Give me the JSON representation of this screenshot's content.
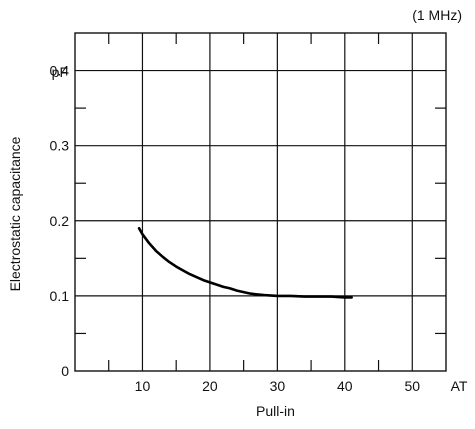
{
  "chart_data": {
    "type": "line",
    "title": "",
    "annotation": "(1 MHz)",
    "xlabel": "Pull-in",
    "x_unit": "AT",
    "ylabel": "Electrostatic capacitance",
    "y_unit": "pF",
    "xlim": [
      0,
      55
    ],
    "ylim": [
      0,
      0.45
    ],
    "x_ticks": [
      10,
      20,
      30,
      40,
      50
    ],
    "x_tick_labels": [
      "10",
      "20",
      "30",
      "40",
      "50"
    ],
    "y_ticks": [
      0,
      0.1,
      0.2,
      0.3,
      0.4
    ],
    "y_tick_labels": [
      "0",
      "0.1",
      "0.2",
      "0.3",
      "0.4"
    ],
    "x_minor_ticks": [
      5,
      15,
      25,
      35,
      45
    ],
    "y_minor_ticks": [
      0.05,
      0.15,
      0.25,
      0.35
    ],
    "grid": true,
    "series": [
      {
        "x": [
          9.5,
          10,
          11,
          12,
          13,
          14,
          15,
          16,
          17,
          18,
          19,
          20,
          21,
          22,
          23,
          24,
          25,
          26,
          27,
          28,
          30,
          32,
          34,
          36,
          38,
          40,
          41
        ],
        "y": [
          0.19,
          0.182,
          0.17,
          0.16,
          0.152,
          0.145,
          0.139,
          0.134,
          0.129,
          0.125,
          0.121,
          0.118,
          0.115,
          0.112,
          0.11,
          0.107,
          0.105,
          0.103,
          0.102,
          0.101,
          0.1,
          0.1,
          0.099,
          0.099,
          0.099,
          0.098,
          0.098
        ],
        "color": "#000000"
      }
    ]
  }
}
